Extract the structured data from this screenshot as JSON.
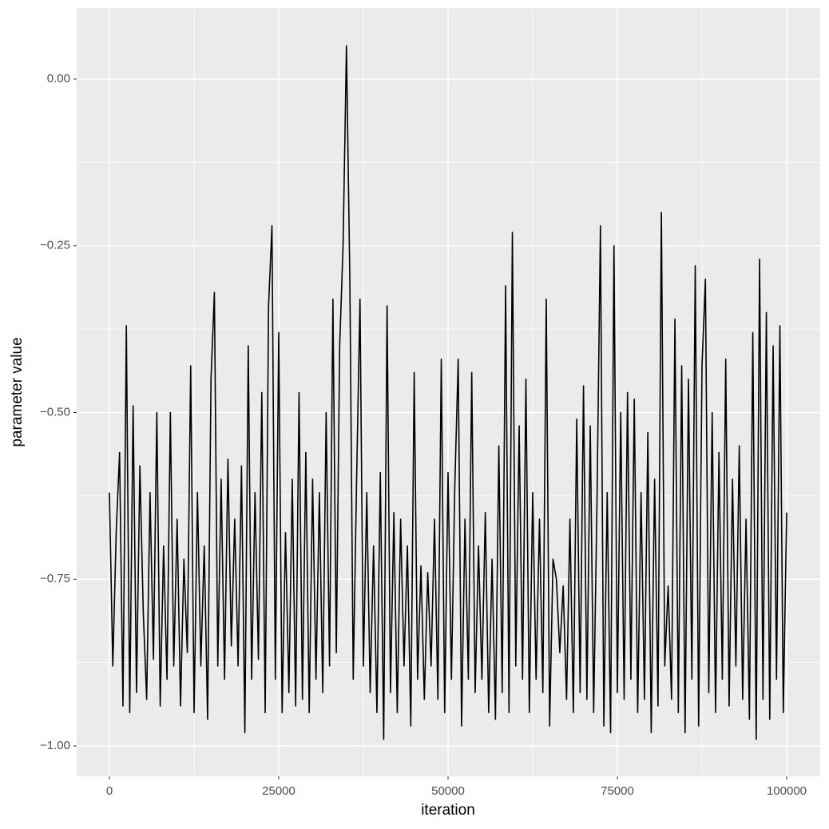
{
  "chart_data": {
    "type": "line",
    "x_label": "iteration",
    "y_label": "parameter value",
    "xlim": [
      -4835,
      104953
    ],
    "ylim": [
      -1.0455,
      0.1066
    ],
    "xticks": [
      0,
      25000,
      50000,
      75000,
      100000
    ],
    "yticks": [
      {
        "value": -1,
        "label": "−1.00"
      },
      {
        "value": -0.75,
        "label": "−0.75"
      },
      {
        "value": -0.5,
        "label": "−0.50"
      },
      {
        "value": -0.25,
        "label": "−0.25"
      },
      {
        "value": 0,
        "label": "0.00"
      }
    ],
    "grid": true,
    "series": [
      {
        "color": "#000000",
        "x": [
          0,
          500,
          1000,
          1500,
          2000,
          2500,
          3000,
          3500,
          4000,
          4500,
          5000,
          5500,
          6000,
          6500,
          7000,
          7500,
          8000,
          8500,
          9000,
          9500,
          10000,
          10500,
          11000,
          11500,
          12000,
          12500,
          13000,
          13500,
          14000,
          14500,
          15000,
          15500,
          16000,
          16500,
          17000,
          17500,
          18000,
          18500,
          19000,
          19500,
          20000,
          20500,
          21000,
          21500,
          22000,
          22500,
          23000,
          23500,
          24000,
          24500,
          25000,
          25500,
          26000,
          26500,
          27000,
          27500,
          28000,
          28500,
          29000,
          29500,
          30000,
          30500,
          31000,
          31500,
          32000,
          32500,
          33000,
          33500,
          34000,
          34500,
          35000,
          35500,
          36000,
          36500,
          37000,
          37500,
          38000,
          38500,
          39000,
          39500,
          40000,
          40500,
          41000,
          41500,
          42000,
          42500,
          43000,
          43500,
          44000,
          44500,
          45000,
          45500,
          46000,
          46500,
          47000,
          47500,
          48000,
          48500,
          49000,
          49500,
          50000,
          50500,
          51000,
          51500,
          52000,
          52500,
          53000,
          53500,
          54000,
          54500,
          55000,
          55500,
          56000,
          56500,
          57000,
          57500,
          58000,
          58500,
          59000,
          59500,
          60000,
          60500,
          61000,
          61500,
          62000,
          62500,
          63000,
          63500,
          64000,
          64500,
          65000,
          65500,
          66000,
          66500,
          67000,
          67500,
          68000,
          68500,
          69000,
          69500,
          70000,
          70500,
          71000,
          71500,
          72000,
          72500,
          73000,
          73500,
          74000,
          74500,
          75000,
          75500,
          76000,
          76500,
          77000,
          77500,
          78000,
          78500,
          79000,
          79500,
          80000,
          80500,
          81000,
          81500,
          82000,
          82500,
          83000,
          83500,
          84000,
          84500,
          85000,
          85500,
          86000,
          86500,
          87000,
          87500,
          88000,
          88500,
          89000,
          89500,
          90000,
          90500,
          91000,
          91500,
          92000,
          92500,
          93000,
          93500,
          94000,
          94500,
          95000,
          95500,
          96000,
          96500,
          97000,
          97500,
          98000,
          98500,
          99000,
          99500,
          100000
        ],
        "values": [
          -0.62,
          -0.88,
          -0.68,
          -0.56,
          -0.94,
          -0.37,
          -0.95,
          -0.49,
          -0.92,
          -0.58,
          -0.8,
          -0.93,
          -0.62,
          -0.87,
          -0.5,
          -0.94,
          -0.7,
          -0.9,
          -0.5,
          -0.88,
          -0.66,
          -0.94,
          -0.72,
          -0.86,
          -0.43,
          -0.95,
          -0.62,
          -0.88,
          -0.7,
          -0.96,
          -0.45,
          -0.32,
          -0.88,
          -0.6,
          -0.9,
          -0.57,
          -0.85,
          -0.66,
          -0.88,
          -0.58,
          -0.98,
          -0.4,
          -0.9,
          -0.62,
          -0.87,
          -0.47,
          -0.95,
          -0.34,
          -0.22,
          -0.9,
          -0.38,
          -0.95,
          -0.68,
          -0.92,
          -0.6,
          -0.94,
          -0.47,
          -0.93,
          -0.56,
          -0.95,
          -0.6,
          -0.9,
          -0.62,
          -0.92,
          -0.5,
          -0.88,
          -0.33,
          -0.86,
          -0.4,
          -0.25,
          0.05,
          -0.3,
          -0.9,
          -0.6,
          -0.33,
          -0.88,
          -0.62,
          -0.92,
          -0.7,
          -0.95,
          -0.59,
          -0.99,
          -0.34,
          -0.92,
          -0.65,
          -0.95,
          -0.66,
          -0.88,
          -0.7,
          -0.97,
          -0.44,
          -0.9,
          -0.73,
          -0.93,
          -0.74,
          -0.88,
          -0.66,
          -0.93,
          -0.42,
          -0.95,
          -0.59,
          -0.9,
          -0.61,
          -0.42,
          -0.97,
          -0.66,
          -0.9,
          -0.44,
          -0.92,
          -0.7,
          -0.9,
          -0.65,
          -0.95,
          -0.72,
          -0.96,
          -0.55,
          -0.92,
          -0.31,
          -0.95,
          -0.23,
          -0.88,
          -0.52,
          -0.9,
          -0.45,
          -0.95,
          -0.62,
          -0.9,
          -0.66,
          -0.92,
          -0.33,
          -0.97,
          -0.72,
          -0.75,
          -0.86,
          -0.76,
          -0.93,
          -0.66,
          -0.95,
          -0.51,
          -0.92,
          -0.46,
          -0.93,
          -0.52,
          -0.95,
          -0.63,
          -0.22,
          -0.97,
          -0.62,
          -0.98,
          -0.25,
          -0.92,
          -0.5,
          -0.93,
          -0.47,
          -0.9,
          -0.48,
          -0.95,
          -0.62,
          -0.93,
          -0.53,
          -0.98,
          -0.6,
          -0.94,
          -0.2,
          -0.88,
          -0.76,
          -0.93,
          -0.36,
          -0.95,
          -0.43,
          -0.98,
          -0.45,
          -0.9,
          -0.28,
          -0.97,
          -0.43,
          -0.3,
          -0.92,
          -0.5,
          -0.95,
          -0.56,
          -0.9,
          -0.42,
          -0.94,
          -0.6,
          -0.88,
          -0.55,
          -0.93,
          -0.66,
          -0.96,
          -0.38,
          -0.99,
          -0.27,
          -0.93,
          -0.35,
          -0.96,
          -0.4,
          -0.9,
          -0.37,
          -0.95,
          -0.65
        ]
      }
    ]
  }
}
